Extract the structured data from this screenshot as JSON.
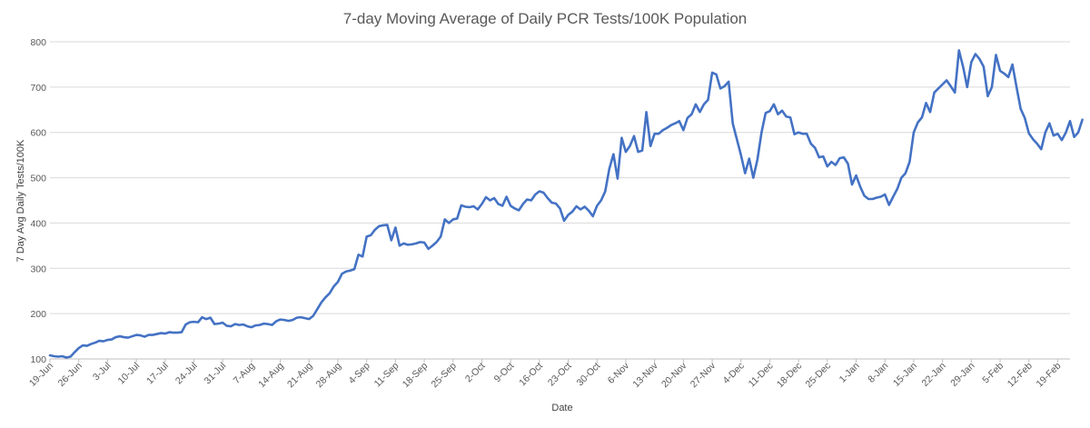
{
  "chart_data": {
    "type": "line",
    "title": "7-day Moving Average of Daily PCR Tests/100K Population",
    "xlabel": "Date",
    "ylabel": "7 Day Avg Daily Tests/100K",
    "ylim": [
      100,
      800
    ],
    "yticks": [
      100,
      200,
      300,
      400,
      500,
      600,
      700,
      800
    ],
    "grid": true,
    "legend": "none",
    "x_range_days": [
      0,
      248
    ],
    "xticks": [
      {
        "day": 0,
        "label": "19-Jun"
      },
      {
        "day": 7,
        "label": "26-Jun"
      },
      {
        "day": 14,
        "label": "3-Jul"
      },
      {
        "day": 21,
        "label": "10-Jul"
      },
      {
        "day": 28,
        "label": "17-Jul"
      },
      {
        "day": 35,
        "label": "24-Jul"
      },
      {
        "day": 42,
        "label": "31-Jul"
      },
      {
        "day": 49,
        "label": "7-Aug"
      },
      {
        "day": 56,
        "label": "14-Aug"
      },
      {
        "day": 63,
        "label": "21-Aug"
      },
      {
        "day": 70,
        "label": "28-Aug"
      },
      {
        "day": 77,
        "label": "4-Sep"
      },
      {
        "day": 84,
        "label": "11-Sep"
      },
      {
        "day": 91,
        "label": "18-Sep"
      },
      {
        "day": 98,
        "label": "25-Sep"
      },
      {
        "day": 105,
        "label": "2-Oct"
      },
      {
        "day": 112,
        "label": "9-Oct"
      },
      {
        "day": 119,
        "label": "16-Oct"
      },
      {
        "day": 126,
        "label": "23-Oct"
      },
      {
        "day": 133,
        "label": "30-Oct"
      },
      {
        "day": 140,
        "label": "6-Nov"
      },
      {
        "day": 147,
        "label": "13-Nov"
      },
      {
        "day": 154,
        "label": "20-Nov"
      },
      {
        "day": 161,
        "label": "27-Nov"
      },
      {
        "day": 168,
        "label": "4-Dec"
      },
      {
        "day": 175,
        "label": "11-Dec"
      },
      {
        "day": 182,
        "label": "18-Dec"
      },
      {
        "day": 189,
        "label": "25-Dec"
      },
      {
        "day": 196,
        "label": "1-Jan"
      },
      {
        "day": 203,
        "label": "8-Jan"
      },
      {
        "day": 210,
        "label": "15-Jan"
      },
      {
        "day": 217,
        "label": "22-Jan"
      },
      {
        "day": 224,
        "label": "29-Jan"
      },
      {
        "day": 231,
        "label": "5-Feb"
      },
      {
        "day": 238,
        "label": "12-Feb"
      },
      {
        "day": 245,
        "label": "19-Feb"
      }
    ],
    "series": [
      {
        "color": "#4472c4",
        "points": [
          [
            0,
            108
          ],
          [
            1,
            106
          ],
          [
            2,
            105
          ],
          [
            3,
            106
          ],
          [
            4,
            103
          ],
          [
            5,
            105
          ],
          [
            6,
            115
          ],
          [
            7,
            124
          ],
          [
            8,
            130
          ],
          [
            9,
            129
          ],
          [
            10,
            133
          ],
          [
            11,
            136
          ],
          [
            12,
            140
          ],
          [
            13,
            139
          ],
          [
            14,
            142
          ],
          [
            15,
            143
          ],
          [
            16,
            148
          ],
          [
            17,
            150
          ],
          [
            18,
            148
          ],
          [
            19,
            147
          ],
          [
            20,
            150
          ],
          [
            21,
            153
          ],
          [
            22,
            152
          ],
          [
            23,
            149
          ],
          [
            24,
            153
          ],
          [
            25,
            153
          ],
          [
            26,
            155
          ],
          [
            27,
            157
          ],
          [
            28,
            156
          ],
          [
            29,
            159
          ],
          [
            30,
            158
          ],
          [
            31,
            158
          ],
          [
            32,
            159
          ],
          [
            33,
            176
          ],
          [
            34,
            181
          ],
          [
            35,
            182
          ],
          [
            36,
            181
          ],
          [
            37,
            192
          ],
          [
            38,
            188
          ],
          [
            39,
            191
          ],
          [
            40,
            177
          ],
          [
            41,
            178
          ],
          [
            42,
            180
          ],
          [
            43,
            173
          ],
          [
            44,
            172
          ],
          [
            45,
            177
          ],
          [
            46,
            175
          ],
          [
            47,
            176
          ],
          [
            48,
            172
          ],
          [
            49,
            170
          ],
          [
            50,
            174
          ],
          [
            51,
            175
          ],
          [
            52,
            178
          ],
          [
            53,
            177
          ],
          [
            54,
            175
          ],
          [
            55,
            183
          ],
          [
            56,
            187
          ],
          [
            57,
            186
          ],
          [
            58,
            184
          ],
          [
            59,
            186
          ],
          [
            60,
            191
          ],
          [
            61,
            192
          ],
          [
            62,
            190
          ],
          [
            63,
            188
          ],
          [
            64,
            195
          ],
          [
            65,
            210
          ],
          [
            66,
            225
          ],
          [
            67,
            236
          ],
          [
            68,
            245
          ],
          [
            69,
            260
          ],
          [
            70,
            270
          ],
          [
            71,
            288
          ],
          [
            72,
            293
          ],
          [
            73,
            295
          ],
          [
            74,
            298
          ],
          [
            75,
            330
          ],
          [
            76,
            326
          ],
          [
            77,
            370
          ],
          [
            78,
            373
          ],
          [
            79,
            385
          ],
          [
            80,
            393
          ],
          [
            81,
            395
          ],
          [
            82,
            396
          ],
          [
            83,
            362
          ],
          [
            84,
            390
          ],
          [
            85,
            350
          ],
          [
            86,
            355
          ],
          [
            87,
            352
          ],
          [
            88,
            353
          ],
          [
            89,
            355
          ],
          [
            90,
            358
          ],
          [
            91,
            357
          ],
          [
            92,
            343
          ],
          [
            93,
            350
          ],
          [
            94,
            358
          ],
          [
            95,
            370
          ],
          [
            96,
            408
          ],
          [
            97,
            400
          ],
          [
            98,
            408
          ],
          [
            99,
            410
          ],
          [
            100,
            439
          ],
          [
            101,
            436
          ],
          [
            102,
            435
          ],
          [
            103,
            437
          ],
          [
            104,
            430
          ],
          [
            105,
            442
          ],
          [
            106,
            457
          ],
          [
            107,
            450
          ],
          [
            108,
            455
          ],
          [
            109,
            442
          ],
          [
            110,
            438
          ],
          [
            111,
            458
          ],
          [
            112,
            438
          ],
          [
            113,
            432
          ],
          [
            114,
            428
          ],
          [
            115,
            442
          ],
          [
            116,
            452
          ],
          [
            117,
            450
          ],
          [
            118,
            463
          ],
          [
            119,
            470
          ],
          [
            120,
            467
          ],
          [
            121,
            455
          ],
          [
            122,
            445
          ],
          [
            123,
            443
          ],
          [
            124,
            432
          ],
          [
            125,
            405
          ],
          [
            126,
            418
          ],
          [
            127,
            425
          ],
          [
            128,
            437
          ],
          [
            129,
            430
          ],
          [
            130,
            436
          ],
          [
            131,
            427
          ],
          [
            132,
            415
          ],
          [
            133,
            438
          ],
          [
            134,
            450
          ],
          [
            135,
            470
          ],
          [
            136,
            520
          ],
          [
            137,
            552
          ],
          [
            138,
            498
          ],
          [
            139,
            588
          ],
          [
            140,
            557
          ],
          [
            141,
            570
          ],
          [
            142,
            592
          ],
          [
            143,
            557
          ],
          [
            144,
            560
          ],
          [
            145,
            645
          ],
          [
            146,
            570
          ],
          [
            147,
            597
          ],
          [
            148,
            597
          ],
          [
            149,
            605
          ],
          [
            150,
            610
          ],
          [
            151,
            616
          ],
          [
            152,
            620
          ],
          [
            153,
            625
          ],
          [
            154,
            605
          ],
          [
            155,
            632
          ],
          [
            156,
            640
          ],
          [
            157,
            662
          ],
          [
            158,
            645
          ],
          [
            159,
            662
          ],
          [
            160,
            672
          ],
          [
            161,
            732
          ],
          [
            162,
            728
          ],
          [
            163,
            697
          ],
          [
            164,
            702
          ],
          [
            165,
            712
          ],
          [
            166,
            620
          ],
          [
            167,
            585
          ],
          [
            168,
            550
          ],
          [
            169,
            510
          ],
          [
            170,
            542
          ],
          [
            171,
            500
          ],
          [
            172,
            540
          ],
          [
            173,
            600
          ],
          [
            174,
            643
          ],
          [
            175,
            647
          ],
          [
            176,
            662
          ],
          [
            177,
            640
          ],
          [
            178,
            648
          ],
          [
            179,
            635
          ],
          [
            180,
            633
          ],
          [
            181,
            596
          ],
          [
            182,
            600
          ],
          [
            183,
            597
          ],
          [
            184,
            597
          ],
          [
            185,
            575
          ],
          [
            186,
            566
          ],
          [
            187,
            545
          ],
          [
            188,
            547
          ],
          [
            189,
            525
          ],
          [
            190,
            535
          ],
          [
            191,
            528
          ],
          [
            192,
            543
          ],
          [
            193,
            545
          ],
          [
            194,
            531
          ],
          [
            195,
            485
          ],
          [
            196,
            505
          ],
          [
            197,
            480
          ],
          [
            198,
            460
          ],
          [
            199,
            453
          ],
          [
            200,
            453
          ],
          [
            201,
            456
          ],
          [
            202,
            458
          ],
          [
            203,
            463
          ],
          [
            204,
            440
          ],
          [
            205,
            458
          ],
          [
            206,
            475
          ],
          [
            207,
            500
          ],
          [
            208,
            510
          ],
          [
            209,
            535
          ],
          [
            210,
            600
          ],
          [
            211,
            622
          ],
          [
            212,
            633
          ],
          [
            213,
            665
          ],
          [
            214,
            645
          ],
          [
            215,
            688
          ],
          [
            216,
            697
          ],
          [
            217,
            706
          ],
          [
            218,
            715
          ],
          [
            219,
            702
          ],
          [
            220,
            688
          ],
          [
            221,
            781
          ],
          [
            222,
            745
          ],
          [
            223,
            700
          ],
          [
            224,
            755
          ],
          [
            225,
            773
          ],
          [
            226,
            762
          ],
          [
            227,
            745
          ],
          [
            228,
            680
          ],
          [
            229,
            700
          ],
          [
            230,
            771
          ],
          [
            231,
            736
          ],
          [
            232,
            730
          ],
          [
            233,
            722
          ],
          [
            234,
            750
          ],
          [
            235,
            700
          ],
          [
            236,
            652
          ],
          [
            237,
            632
          ],
          [
            238,
            598
          ],
          [
            239,
            585
          ],
          [
            240,
            575
          ],
          [
            241,
            563
          ],
          [
            242,
            600
          ],
          [
            243,
            620
          ],
          [
            244,
            593
          ],
          [
            245,
            597
          ],
          [
            246,
            583
          ],
          [
            247,
            600
          ],
          [
            248,
            625
          ],
          [
            249,
            590
          ],
          [
            250,
            600
          ],
          [
            251,
            628
          ]
        ]
      }
    ]
  }
}
